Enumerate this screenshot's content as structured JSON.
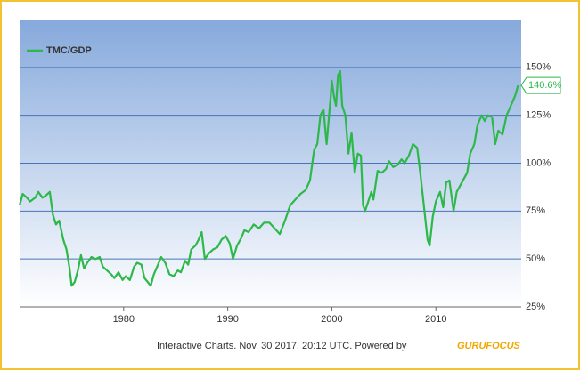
{
  "chart_data": {
    "type": "line",
    "legend": {
      "position": "upper left"
    },
    "series": [
      {
        "name": "TMC/GDP",
        "color": "#2db84a",
        "x": [
          1970.0,
          1970.3,
          1970.7,
          1971.0,
          1971.5,
          1971.8,
          1972.2,
          1972.5,
          1972.9,
          1973.2,
          1973.5,
          1973.8,
          1974.2,
          1974.5,
          1974.8,
          1975.0,
          1975.3,
          1975.6,
          1975.9,
          1976.2,
          1976.5,
          1976.9,
          1977.3,
          1977.7,
          1978.0,
          1978.4,
          1978.8,
          1979.1,
          1979.5,
          1979.9,
          1980.2,
          1980.6,
          1981.0,
          1981.3,
          1981.7,
          1982.0,
          1982.3,
          1982.6,
          1982.9,
          1983.3,
          1983.6,
          1984.0,
          1984.4,
          1984.8,
          1985.2,
          1985.5,
          1985.9,
          1986.2,
          1986.5,
          1986.9,
          1987.2,
          1987.5,
          1987.8,
          1988.2,
          1988.6,
          1989.0,
          1989.4,
          1989.8,
          1990.2,
          1990.5,
          1990.9,
          1991.3,
          1991.6,
          1992.0,
          1992.5,
          1993.0,
          1993.5,
          1994.0,
          1994.5,
          1995.0,
          1995.5,
          1996.0,
          1996.5,
          1997.0,
          1997.5,
          1997.9,
          1998.3,
          1998.6,
          1998.9,
          1999.2,
          1999.5,
          1999.9,
          2000.0,
          2000.2,
          2000.4,
          2000.6,
          2000.8,
          2001.0,
          2001.3,
          2001.6,
          2001.9,
          2002.2,
          2002.5,
          2002.8,
          2003.0,
          2003.2,
          2003.5,
          2003.8,
          2004.0,
          2004.4,
          2004.8,
          2005.2,
          2005.5,
          2005.9,
          2006.3,
          2006.7,
          2007.0,
          2007.4,
          2007.8,
          2008.2,
          2008.5,
          2008.9,
          2009.2,
          2009.4,
          2009.7,
          2010.0,
          2010.4,
          2010.7,
          2011.0,
          2011.3,
          2011.7,
          2012.0,
          2012.3,
          2012.7,
          2013.0,
          2013.3,
          2013.7,
          2014.0,
          2014.4,
          2014.7,
          2015.0,
          2015.4,
          2015.7,
          2016.0,
          2016.4,
          2016.8,
          2017.2,
          2017.6,
          2017.9
        ],
        "values": [
          78,
          84,
          82,
          80,
          82,
          85,
          82,
          83,
          85,
          73,
          68,
          70,
          60,
          55,
          45,
          36,
          38,
          44,
          52,
          45,
          48,
          51,
          50,
          51,
          46,
          44,
          42,
          40,
          43,
          39,
          41,
          39,
          46,
          48,
          47,
          40,
          38,
          36,
          42,
          47,
          51,
          48,
          42,
          41,
          44,
          43,
          49,
          47,
          55,
          57,
          60,
          64,
          50,
          53,
          55,
          56,
          60,
          62,
          58,
          50,
          57,
          61,
          65,
          64,
          68,
          66,
          69,
          69,
          66,
          63,
          70,
          78,
          81,
          84,
          86,
          91,
          107,
          110,
          125,
          128,
          110,
          135,
          143,
          135,
          130,
          146,
          148,
          130,
          125,
          105,
          116,
          95,
          105,
          104,
          78,
          75,
          80,
          85,
          81,
          96,
          95,
          97,
          101,
          98,
          99,
          102,
          100,
          104,
          110,
          108,
          95,
          75,
          60,
          57,
          72,
          80,
          85,
          77,
          90,
          91,
          75,
          85,
          88,
          92,
          95,
          105,
          110,
          120,
          125,
          122,
          125,
          124,
          110,
          117,
          115,
          125,
          130,
          135,
          140.6
        ]
      }
    ],
    "annotation": {
      "value": 140.6,
      "label": "140.6%"
    },
    "xlim": [
      1970,
      2018.2
    ],
    "xticks": [
      1980,
      1990,
      2000,
      2010
    ],
    "ylim": [
      25,
      175
    ],
    "yticks": [
      {
        "value": 25,
        "label": "25%"
      },
      {
        "value": 50,
        "label": "50%"
      },
      {
        "value": 75,
        "label": "75%"
      },
      {
        "value": 100,
        "label": "100%"
      },
      {
        "value": 125,
        "label": "125%"
      },
      {
        "value": 150,
        "label": "150%"
      }
    ],
    "grid": true,
    "footer": "Interactive Charts. Nov. 30 2017, 20:12 UTC. Powered by",
    "logo": "GURUFOCUS"
  }
}
